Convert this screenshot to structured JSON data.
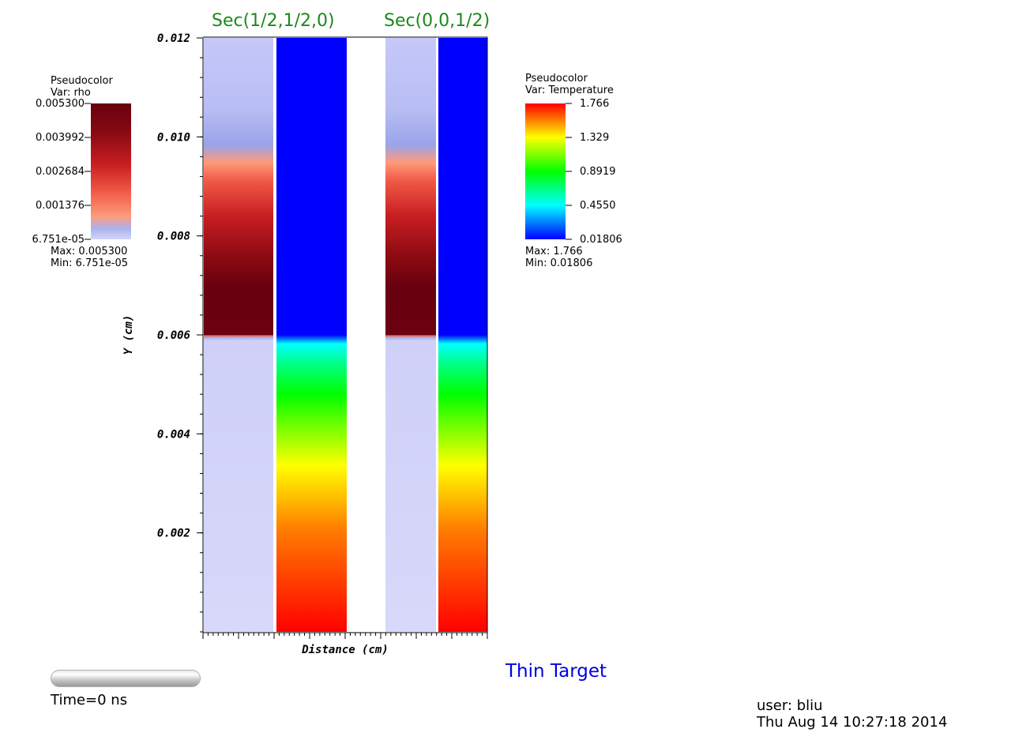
{
  "titles": {
    "left_section": "Sec(1/2,1/2,0)",
    "right_section": "Sec(0,0,1/2)"
  },
  "colors": {
    "section_title": "#1a8a1a",
    "annotation": "#0000e0",
    "rho_map": [
      "#d4d4fa",
      "#c3c6f8",
      "#9aa4e8",
      "#ff9a7a",
      "#f05a46",
      "#c81e22",
      "#8a0a12",
      "#68000f"
    ],
    "temperature_map": [
      "#0000ff",
      "#00ffff",
      "#00ff00",
      "#ffff00",
      "#ff0000"
    ]
  },
  "legend_rho": {
    "title": "Pseudocolor",
    "var": "Var: rho",
    "ticks": [
      "0.005300",
      "0.003992",
      "0.002684",
      "0.001376",
      "6.751e-05"
    ],
    "max": "Max:  0.005300",
    "min": "Min:  6.751e-05"
  },
  "legend_temperature": {
    "title": "Pseudocolor",
    "var": "Var: Temperature",
    "ticks": [
      "1.766",
      "1.329",
      "0.8919",
      "0.4550",
      "0.01806"
    ],
    "max": "Max:  1.766",
    "min": "Min:  0.01806"
  },
  "annotation": "Thin Target",
  "time_label": "Time=0 ns",
  "user_label": "user: bliu",
  "date_label": "Thu Aug 14 10:27:18 2014",
  "chart_data": {
    "type": "heatmap",
    "xlabel": "Distance (cm)",
    "ylabel": "Y (cm)",
    "ylim": [
      0,
      0.012
    ],
    "y_ticks": [
      "0.012",
      "0.010",
      "0.008",
      "0.006",
      "0.004",
      "0.002"
    ],
    "y_tick_values": [
      0.012,
      0.01,
      0.008,
      0.006,
      0.004,
      0.002
    ],
    "interface_y": 0.006,
    "sections": [
      {
        "name": "Sec(1/2,1/2,0)",
        "rho_profile": [
          {
            "y": 0.0,
            "value": 6.751e-05
          },
          {
            "y": 0.0059,
            "value": 0.0002
          },
          {
            "y": 0.006,
            "value": 0.0053
          },
          {
            "y": 0.0068,
            "value": 0.0053
          },
          {
            "y": 0.0085,
            "value": 0.003
          },
          {
            "y": 0.0093,
            "value": 0.0014
          },
          {
            "y": 0.01,
            "value": 0.0005
          },
          {
            "y": 0.012,
            "value": 0.0002
          }
        ],
        "temperature_profile": [
          {
            "y": 0.0,
            "value": 1.766
          },
          {
            "y": 0.0035,
            "value": 1.329
          },
          {
            "y": 0.005,
            "value": 0.8919
          },
          {
            "y": 0.0059,
            "value": 0.455
          },
          {
            "y": 0.006,
            "value": 0.01806
          },
          {
            "y": 0.012,
            "value": 0.01806
          }
        ]
      },
      {
        "name": "Sec(0,0,1/2)",
        "rho_profile": [
          {
            "y": 0.0,
            "value": 6.751e-05
          },
          {
            "y": 0.0059,
            "value": 0.0002
          },
          {
            "y": 0.006,
            "value": 0.0053
          },
          {
            "y": 0.0068,
            "value": 0.0053
          },
          {
            "y": 0.0085,
            "value": 0.003
          },
          {
            "y": 0.0093,
            "value": 0.0014
          },
          {
            "y": 0.01,
            "value": 0.0005
          },
          {
            "y": 0.012,
            "value": 0.0002
          }
        ],
        "temperature_profile": [
          {
            "y": 0.0,
            "value": 1.766
          },
          {
            "y": 0.0035,
            "value": 1.329
          },
          {
            "y": 0.005,
            "value": 0.8919
          },
          {
            "y": 0.0059,
            "value": 0.455
          },
          {
            "y": 0.006,
            "value": 0.01806
          },
          {
            "y": 0.012,
            "value": 0.01806
          }
        ]
      }
    ]
  }
}
